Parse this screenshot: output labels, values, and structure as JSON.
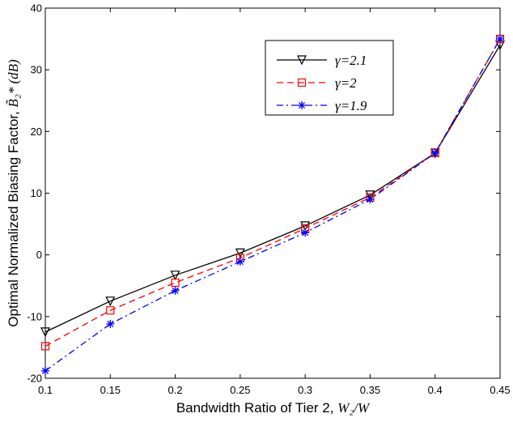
{
  "chart_data": {
    "type": "line",
    "title": "",
    "xlabel": "Bandwidth Ratio of Tier 2, ",
    "xlabel_math": "W₂/W",
    "ylabel": "Optimal Normalized Biasing Factor, ",
    "ylabel_math": "B̃₂* (dB)",
    "xlim": [
      0.1,
      0.45
    ],
    "ylim": [
      -20,
      40
    ],
    "xticks": [
      0.1,
      0.15,
      0.2,
      0.25,
      0.3,
      0.35,
      0.4,
      0.45
    ],
    "xtick_labels": [
      "0.1",
      "0.15",
      "0.2",
      "0.25",
      "0.3",
      "0.35",
      "0.4",
      "0.45"
    ],
    "yticks": [
      -20,
      -10,
      0,
      10,
      20,
      30,
      40
    ],
    "ytick_labels": [
      "-20",
      "-10",
      "0",
      "10",
      "20",
      "30",
      "40"
    ],
    "grid": false,
    "legend_position": "top-right",
    "x": [
      0.1,
      0.15,
      0.2,
      0.25,
      0.3,
      0.35,
      0.4,
      0.45
    ],
    "series": [
      {
        "name": "γ=2.1",
        "color": "#000000",
        "style": "solid",
        "marker": "triangle-down",
        "values": [
          -12.5,
          -7.5,
          -3.3,
          0.3,
          4.7,
          9.7,
          16.5,
          34.0
        ]
      },
      {
        "name": "γ=2",
        "color": "#ff0000",
        "style": "dashed",
        "marker": "square",
        "values": [
          -14.8,
          -9.0,
          -4.5,
          -0.5,
          4.3,
          9.3,
          16.5,
          35.0
        ]
      },
      {
        "name": "γ=1.9",
        "color": "#0000ff",
        "style": "dashdot",
        "marker": "asterisk",
        "values": [
          -18.8,
          -11.2,
          -5.8,
          -1.1,
          3.6,
          9.0,
          16.5,
          35.0
        ]
      }
    ]
  }
}
